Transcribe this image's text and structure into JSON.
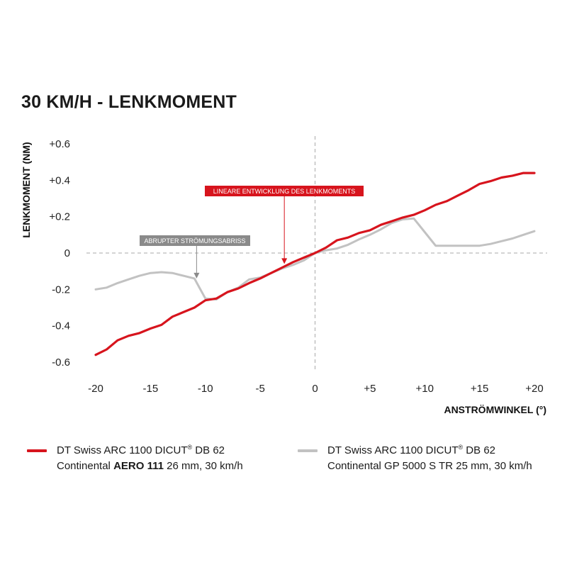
{
  "chart_data": {
    "type": "line",
    "title": "30 KM/H - LENKMOMENT",
    "xlabel": "ANSTRÖMWINKEL (°)",
    "ylabel": "LENKMOMENT (NM)",
    "xlim": [
      -20,
      20
    ],
    "ylim": [
      -0.6,
      0.6
    ],
    "x_ticks": [
      -20,
      -15,
      -10,
      -5,
      0,
      5,
      10,
      15,
      20
    ],
    "x_tick_labels": [
      "-20",
      "-15",
      "-10",
      "-5",
      "0",
      "+5",
      "+10",
      "+15",
      "+20"
    ],
    "y_ticks": [
      0.6,
      0.4,
      0.2,
      0,
      -0.2,
      -0.4,
      -0.6
    ],
    "y_tick_labels": [
      "+0.6",
      "+0.4",
      "+0.2",
      "0",
      "-0.2",
      "-0.4",
      "-0.6"
    ],
    "zero_lines": "dashed",
    "series": [
      {
        "name": "DT Swiss ARC 1100 DICUT® DB 62 Continental AERO 111 26 mm, 30 km/h",
        "color": "#d7141d",
        "x": [
          -20,
          -19,
          -18,
          -17,
          -16,
          -15,
          -14,
          -13,
          -12,
          -11,
          -10,
          -9,
          -8,
          -7,
          -6,
          -5,
          -4,
          -3,
          -2,
          -1,
          0,
          1,
          2,
          3,
          4,
          5,
          6,
          7,
          8,
          9,
          10,
          11,
          12,
          13,
          14,
          15,
          16,
          17,
          18,
          19,
          20
        ],
        "y": [
          -0.56,
          -0.53,
          -0.48,
          -0.455,
          -0.44,
          -0.415,
          -0.395,
          -0.35,
          -0.325,
          -0.3,
          -0.26,
          -0.25,
          -0.215,
          -0.195,
          -0.165,
          -0.14,
          -0.11,
          -0.08,
          -0.05,
          -0.025,
          0.0,
          0.03,
          0.07,
          0.085,
          0.11,
          0.125,
          0.155,
          0.175,
          0.195,
          0.21,
          0.235,
          0.265,
          0.285,
          0.315,
          0.345,
          0.38,
          0.395,
          0.415,
          0.425,
          0.44,
          0.44
        ]
      },
      {
        "name": "DT Swiss ARC 1100 DICUT® DB 62 Continental GP 5000 S TR 25 mm, 30 km/h",
        "color": "#c2c2c2",
        "x": [
          -20,
          -19,
          -18,
          -17,
          -16,
          -15,
          -14,
          -13,
          -12,
          -11,
          -10.5,
          -10,
          -9,
          -8,
          -7,
          -6,
          -5,
          -4,
          -3,
          -2,
          -1,
          0,
          1,
          2,
          3,
          4,
          5,
          6,
          7,
          8,
          9,
          10,
          11,
          12,
          13,
          14,
          15,
          16,
          17,
          18,
          19,
          20
        ],
        "y": [
          -0.2,
          -0.19,
          -0.165,
          -0.145,
          -0.125,
          -0.11,
          -0.105,
          -0.11,
          -0.125,
          -0.14,
          -0.195,
          -0.25,
          -0.255,
          -0.215,
          -0.19,
          -0.145,
          -0.135,
          -0.11,
          -0.085,
          -0.065,
          -0.04,
          -0.0,
          0.015,
          0.025,
          0.045,
          0.075,
          0.1,
          0.13,
          0.165,
          0.185,
          0.19,
          0.115,
          0.04,
          0.04,
          0.04,
          0.04,
          0.04,
          0.05,
          0.065,
          0.08,
          0.1,
          0.12
        ]
      }
    ],
    "annotations": [
      {
        "text": "LINEARE ENTWICKLUNG DES LENKMOMENTS",
        "color": "#d7141d",
        "arrow_to": [
          -2.8,
          -0.06
        ]
      },
      {
        "text": "ABRUPTER STRÖMUNGSABRISS",
        "color": "#8a8a8a",
        "arrow_to": [
          -10.8,
          -0.14
        ]
      }
    ]
  },
  "legend": {
    "red_line1": "DT Swiss ARC 1100 DICUT",
    "red_reg": "®",
    "red_line1_tail": " DB 62",
    "red_line2_a": "Continental ",
    "red_line2_bold": "AERO 111",
    "red_line2_b": " 26 mm, 30 km/h",
    "gray_line1": "DT Swiss ARC 1100 DICUT",
    "gray_reg": "®",
    "gray_line1_tail": " DB 62",
    "gray_line2": "Continental GP 5000 S TR 25 mm, 30 km/h"
  }
}
